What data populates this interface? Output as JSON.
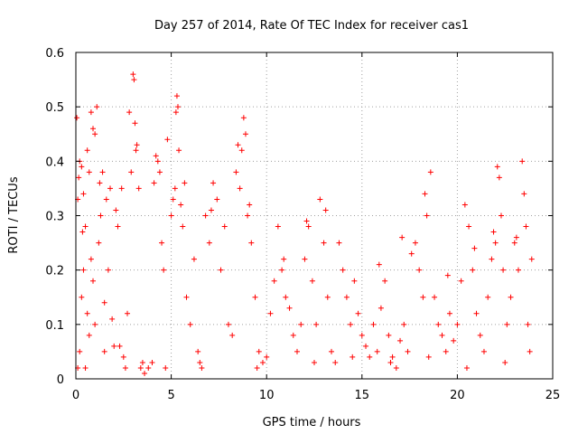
{
  "chart_data": {
    "type": "scatter",
    "title": "Day 257 of 2014, Rate Of TEC Index for receiver cas1",
    "xlabel": "GPS time / hours",
    "ylabel": "ROTI / TECUs",
    "xlim": [
      0,
      25
    ],
    "ylim": [
      0,
      0.6
    ],
    "grid": true,
    "marker": "+",
    "color": "#ff0000",
    "xticks": [
      0,
      5,
      10,
      15,
      20,
      25
    ],
    "yticks": [
      0,
      0.1,
      0.2,
      0.3,
      0.4,
      0.5,
      0.6
    ],
    "xtick_labels": [
      "0",
      "5",
      "10",
      "15",
      "20",
      "25"
    ],
    "ytick_labels": [
      "0",
      "0.1",
      "0.2",
      "0.3",
      "0.4",
      "0.5",
      "0.6"
    ],
    "series": [
      {
        "name": "ROTI",
        "points": [
          [
            0.05,
            0.48
          ],
          [
            0.2,
            0.4
          ],
          [
            0.3,
            0.39
          ],
          [
            0.4,
            0.34
          ],
          [
            0.1,
            0.33
          ],
          [
            0.6,
            0.42
          ],
          [
            0.9,
            0.46
          ],
          [
            1.0,
            0.45
          ],
          [
            1.1,
            0.5
          ],
          [
            0.8,
            0.49
          ],
          [
            1.4,
            0.38
          ],
          [
            0.1,
            0.02
          ],
          [
            0.2,
            0.05
          ],
          [
            0.3,
            0.15
          ],
          [
            0.4,
            0.2
          ],
          [
            0.5,
            0.28
          ],
          [
            0.6,
            0.12
          ],
          [
            0.7,
            0.08
          ],
          [
            0.8,
            0.22
          ],
          [
            0.9,
            0.18
          ],
          [
            1.0,
            0.1
          ],
          [
            1.2,
            0.25
          ],
          [
            1.3,
            0.3
          ],
          [
            1.5,
            0.14
          ],
          [
            1.7,
            0.2
          ],
          [
            1.8,
            0.35
          ],
          [
            1.9,
            0.11
          ],
          [
            2.0,
            0.06
          ],
          [
            2.2,
            0.28
          ],
          [
            2.4,
            0.35
          ],
          [
            2.5,
            0.04
          ],
          [
            2.6,
            0.02
          ],
          [
            2.7,
            0.12
          ],
          [
            2.8,
            0.49
          ],
          [
            2.9,
            0.38
          ],
          [
            3.0,
            0.56
          ],
          [
            3.05,
            0.55
          ],
          [
            3.1,
            0.47
          ],
          [
            3.2,
            0.43
          ],
          [
            3.3,
            0.35
          ],
          [
            3.4,
            0.02
          ],
          [
            3.5,
            0.03
          ],
          [
            3.6,
            0.01
          ],
          [
            3.8,
            0.02
          ],
          [
            4.0,
            0.03
          ],
          [
            4.2,
            0.41
          ],
          [
            4.3,
            0.4
          ],
          [
            4.4,
            0.38
          ],
          [
            4.5,
            0.25
          ],
          [
            4.6,
            0.2
          ],
          [
            4.8,
            0.44
          ],
          [
            5.0,
            0.3
          ],
          [
            5.1,
            0.33
          ],
          [
            5.2,
            0.35
          ],
          [
            5.3,
            0.52
          ],
          [
            5.35,
            0.5
          ],
          [
            5.4,
            0.42
          ],
          [
            5.5,
            0.32
          ],
          [
            5.6,
            0.28
          ],
          [
            5.8,
            0.15
          ],
          [
            6.0,
            0.1
          ],
          [
            6.2,
            0.22
          ],
          [
            6.4,
            0.05
          ],
          [
            6.6,
            0.02
          ],
          [
            6.8,
            0.3
          ],
          [
            7.0,
            0.25
          ],
          [
            7.2,
            0.36
          ],
          [
            7.4,
            0.33
          ],
          [
            7.6,
            0.2
          ],
          [
            7.8,
            0.28
          ],
          [
            8.0,
            0.1
          ],
          [
            8.2,
            0.08
          ],
          [
            8.4,
            0.38
          ],
          [
            8.5,
            0.43
          ],
          [
            8.6,
            0.35
          ],
          [
            8.8,
            0.48
          ],
          [
            9.0,
            0.3
          ],
          [
            9.2,
            0.25
          ],
          [
            9.4,
            0.15
          ],
          [
            9.6,
            0.05
          ],
          [
            9.8,
            0.03
          ],
          [
            10.0,
            0.04
          ],
          [
            10.2,
            0.12
          ],
          [
            10.4,
            0.18
          ],
          [
            10.6,
            0.28
          ],
          [
            10.8,
            0.2
          ],
          [
            11.0,
            0.15
          ],
          [
            11.2,
            0.13
          ],
          [
            11.4,
            0.08
          ],
          [
            11.6,
            0.05
          ],
          [
            11.8,
            0.1
          ],
          [
            12.0,
            0.22
          ],
          [
            12.2,
            0.28
          ],
          [
            12.4,
            0.18
          ],
          [
            12.6,
            0.1
          ],
          [
            12.8,
            0.33
          ],
          [
            13.0,
            0.25
          ],
          [
            13.2,
            0.15
          ],
          [
            13.4,
            0.05
          ],
          [
            13.6,
            0.03
          ],
          [
            13.8,
            0.25
          ],
          [
            14.0,
            0.2
          ],
          [
            14.2,
            0.15
          ],
          [
            14.4,
            0.1
          ],
          [
            14.6,
            0.18
          ],
          [
            14.8,
            0.12
          ],
          [
            15.0,
            0.08
          ],
          [
            15.2,
            0.06
          ],
          [
            15.4,
            0.04
          ],
          [
            15.6,
            0.1
          ],
          [
            15.8,
            0.05
          ],
          [
            16.0,
            0.13
          ],
          [
            16.2,
            0.18
          ],
          [
            16.4,
            0.08
          ],
          [
            16.6,
            0.04
          ],
          [
            16.8,
            0.02
          ],
          [
            17.0,
            0.07
          ],
          [
            17.2,
            0.1
          ],
          [
            17.4,
            0.05
          ],
          [
            17.6,
            0.23
          ],
          [
            17.8,
            0.25
          ],
          [
            18.0,
            0.2
          ],
          [
            18.2,
            0.15
          ],
          [
            18.4,
            0.3
          ],
          [
            18.6,
            0.38
          ],
          [
            18.8,
            0.15
          ],
          [
            19.0,
            0.1
          ],
          [
            19.2,
            0.08
          ],
          [
            19.4,
            0.05
          ],
          [
            19.6,
            0.12
          ],
          [
            19.8,
            0.07
          ],
          [
            20.0,
            0.1
          ],
          [
            20.2,
            0.18
          ],
          [
            20.4,
            0.32
          ],
          [
            20.6,
            0.28
          ],
          [
            20.8,
            0.2
          ],
          [
            21.0,
            0.12
          ],
          [
            21.2,
            0.08
          ],
          [
            21.4,
            0.05
          ],
          [
            21.6,
            0.15
          ],
          [
            21.8,
            0.22
          ],
          [
            22.0,
            0.25
          ],
          [
            22.1,
            0.39
          ],
          [
            22.2,
            0.37
          ],
          [
            22.3,
            0.3
          ],
          [
            22.4,
            0.2
          ],
          [
            22.6,
            0.1
          ],
          [
            22.8,
            0.15
          ],
          [
            23.0,
            0.25
          ],
          [
            23.2,
            0.2
          ],
          [
            23.4,
            0.4
          ],
          [
            23.5,
            0.34
          ],
          [
            23.6,
            0.28
          ],
          [
            23.7,
            0.1
          ],
          [
            23.8,
            0.05
          ],
          [
            23.9,
            0.22
          ],
          [
            0.5,
            0.02
          ],
          [
            1.5,
            0.05
          ],
          [
            2.3,
            0.06
          ],
          [
            4.7,
            0.02
          ],
          [
            6.5,
            0.03
          ],
          [
            9.5,
            0.02
          ],
          [
            12.5,
            0.03
          ],
          [
            14.5,
            0.04
          ],
          [
            16.5,
            0.03
          ],
          [
            18.5,
            0.04
          ],
          [
            20.5,
            0.02
          ],
          [
            22.5,
            0.03
          ],
          [
            0.7,
            0.38
          ],
          [
            1.6,
            0.33
          ],
          [
            2.1,
            0.31
          ],
          [
            4.1,
            0.36
          ],
          [
            5.7,
            0.36
          ],
          [
            7.1,
            0.31
          ],
          [
            8.7,
            0.42
          ],
          [
            9.1,
            0.32
          ],
          [
            10.9,
            0.22
          ],
          [
            12.1,
            0.29
          ],
          [
            13.1,
            0.31
          ],
          [
            15.9,
            0.21
          ],
          [
            17.1,
            0.26
          ],
          [
            18.3,
            0.34
          ],
          [
            19.5,
            0.19
          ],
          [
            20.9,
            0.24
          ],
          [
            21.9,
            0.27
          ],
          [
            23.1,
            0.26
          ],
          [
            0.15,
            0.37
          ],
          [
            0.35,
            0.27
          ],
          [
            1.25,
            0.36
          ],
          [
            3.15,
            0.42
          ],
          [
            5.25,
            0.49
          ],
          [
            8.9,
            0.45
          ]
        ]
      }
    ]
  }
}
